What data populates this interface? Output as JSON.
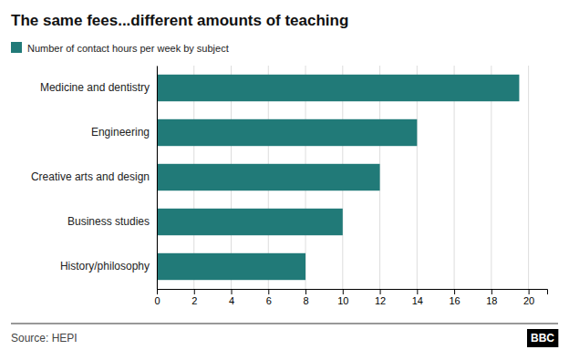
{
  "chart_data": {
    "type": "bar",
    "orientation": "horizontal",
    "title": "The same fees...different amounts of teaching",
    "categories": [
      "Medicine and dentistry",
      "Engineering",
      "Creative arts and design",
      "Business studies",
      "History/philosophy"
    ],
    "series": [
      {
        "name": "Number of contact hours per week by subject",
        "color": "#217a78",
        "values": [
          19.5,
          14,
          12,
          10,
          8
        ]
      }
    ],
    "xlim": [
      0,
      21
    ],
    "xticks": [
      0,
      2,
      4,
      6,
      8,
      10,
      12,
      14,
      16,
      18,
      20
    ],
    "grid": true,
    "legend": "top-left",
    "annotations": [
      "Source: HEPI",
      "BBC"
    ]
  }
}
